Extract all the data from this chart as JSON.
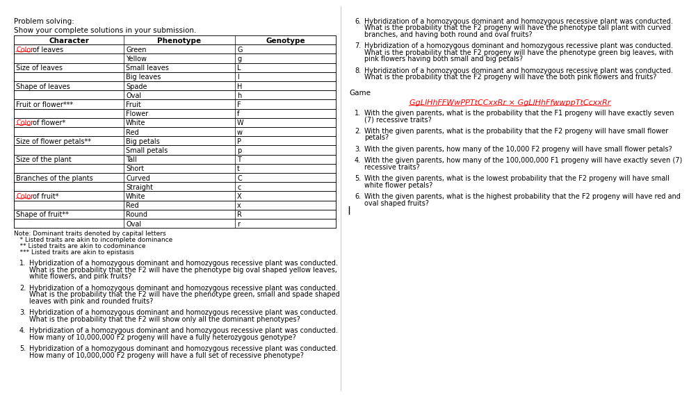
{
  "background_color": "#ffffff",
  "left_panel": {
    "problem_solving_header": "Problem solving:",
    "show_solutions": "Show your complete solutions in your submission.",
    "table": {
      "headers": [
        "Character",
        "Phenotype",
        "Genotype"
      ],
      "rows": [
        [
          "Color of leaves",
          "Green",
          "G"
        ],
        [
          "",
          "Yellow",
          "g"
        ],
        [
          "Size of leaves",
          "Small leaves",
          "L"
        ],
        [
          "",
          "Big leaves",
          "l"
        ],
        [
          "Shape of leaves",
          "Spade",
          "H"
        ],
        [
          "",
          "Oval",
          "h"
        ],
        [
          "Fruit or flower***",
          "Fruit",
          "F"
        ],
        [
          "",
          "Flower",
          "f"
        ],
        [
          "Color of flower*",
          "White",
          "W"
        ],
        [
          "",
          "Red",
          "w"
        ],
        [
          "Size of flower petals**",
          "Big petals",
          "P"
        ],
        [
          "",
          "Small petals",
          "p"
        ],
        [
          "Size of the plant",
          "Tall",
          "T"
        ],
        [
          "",
          "Short",
          "t"
        ],
        [
          "Branches of the plants",
          "Curved",
          "C"
        ],
        [
          "",
          "Straight",
          "c"
        ],
        [
          "Color of fruit*",
          "White",
          "X"
        ],
        [
          "",
          "Red",
          "x"
        ],
        [
          "Shape of fruit**",
          "Round",
          "R"
        ],
        [
          "",
          "Oval",
          "r"
        ]
      ]
    },
    "color_rows": [
      "Color of leaves",
      "Color of flower*",
      "Color of fruit*"
    ],
    "notes": [
      "Note: Dominant traits denoted by capital letters",
      "   * Listed traits are akin to incomplete dominance",
      "   ** Listed traits are akin to codominance",
      "   *** Listed traits are akin to epistasis"
    ],
    "questions": [
      {
        "num": "1.",
        "text": "Hybridization of a homozygous dominant and homozygous recessive plant was conducted.\nWhat is the probability that the F2 will have the phenotype big oval shaped yellow leaves,\nwhite flowers, and pink fruits?"
      },
      {
        "num": "2.",
        "text": "Hybridization of a homozygous dominant and homozygous recessive plant was conducted.\nWhat is the probability that the F2 will have the phenotype green, small and spade shaped\nleaves with pink and rounded fruits?"
      },
      {
        "num": "3.",
        "text": "Hybridization of a homozygous dominant and homozygous recessive plant was conducted.\nWhat is the probability that the F2 will show only all the dominant phenotypes?"
      },
      {
        "num": "4.",
        "text": "Hybridization of a homozygous dominant and homozygous recessive plant was conducted.\nHow many of 10,000,000 F2 progeny will have a fully heterozygous genotype?"
      },
      {
        "num": "5.",
        "text": "Hybridization of a homozygous dominant and homozygous recessive plant was conducted.\nHow many of 10,000,000 F2 progeny will have a full set of recessive phenotype?"
      }
    ]
  },
  "right_panel": {
    "questions_top": [
      {
        "num": "6.",
        "text": "Hybridization of a homozygous dominant and homozygous recessive plant was conducted.\nWhat is the probability that the F2 progeny will have the phenotype tall plant with curved\nbranches, and having both round and oval fruits?"
      },
      {
        "num": "7.",
        "text": "Hybridization of a homozygous dominant and homozygous recessive plant was conducted.\nWhat is the probability that the F2 progeny will have the phenotype green big leaves, with\npink flowers having both small and big petals?"
      },
      {
        "num": "8.",
        "text": "Hybridization of a homozygous dominant and homozygous recessive plant was conducted.\nWhat is the probability that the F2 progeny will have the both pink flowers and fruits?"
      }
    ],
    "game_label": "Game",
    "game_cross": "GgLlHhFFWwPPTtCCxxRr × GgLlHhFfwwppTtCcxxRr",
    "game_questions": [
      {
        "num": "1.",
        "text": "With the given parents, what is the probability that the F1 progeny will have exactly seven\n(7) recessive traits?"
      },
      {
        "num": "2.",
        "text": "With the given parents, what is the probability that the F2 progeny will have small flower\npetals?"
      },
      {
        "num": "3.",
        "text": "With the given parents, how many of the 10,000 F2 progeny will have small flower petals?"
      },
      {
        "num": "4.",
        "text": "With the given parents, how many of the 100,000,000 F1 progeny will have exactly seven (7)\nrecessive traits?"
      },
      {
        "num": "5.",
        "text": "With the given parents, what is the lowest probability that the F2 progeny will have small\nwhite flower petals?"
      },
      {
        "num": "6.",
        "text": "With the given parents, what is the highest probability that the F2 progeny will have red and\noval shaped fruits?"
      }
    ]
  }
}
